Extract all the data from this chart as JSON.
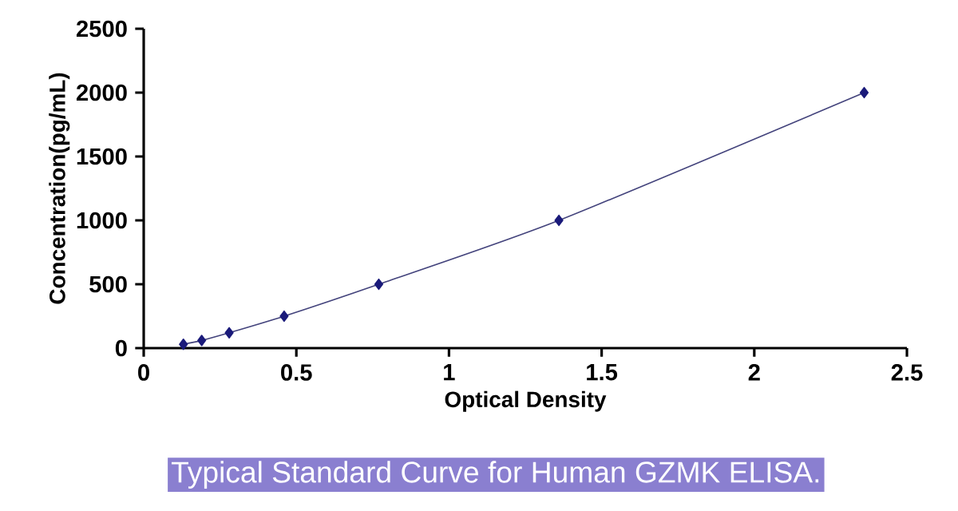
{
  "chart_data": {
    "type": "line",
    "title": "Typical Standard Curve for Human GZMK ELISA.",
    "xlabel": "Optical Density",
    "ylabel": "Concentration(pg/mL)",
    "x": [
      0.13,
      0.19,
      0.28,
      0.46,
      0.77,
      1.36,
      2.36
    ],
    "series": [
      {
        "color": "#1a1a7a",
        "values": [
          30,
          60,
          120,
          250,
          500,
          1000,
          2000
        ]
      }
    ],
    "xlim": [
      0,
      2.5
    ],
    "ylim": [
      0,
      2500
    ],
    "xticks": [
      0,
      0.5,
      1,
      1.5,
      2,
      2.5
    ],
    "yticks": [
      0,
      500,
      1000,
      1500,
      2000,
      2500
    ],
    "grid": false,
    "legend": false,
    "marker": "diamond",
    "line_style": "solid"
  }
}
